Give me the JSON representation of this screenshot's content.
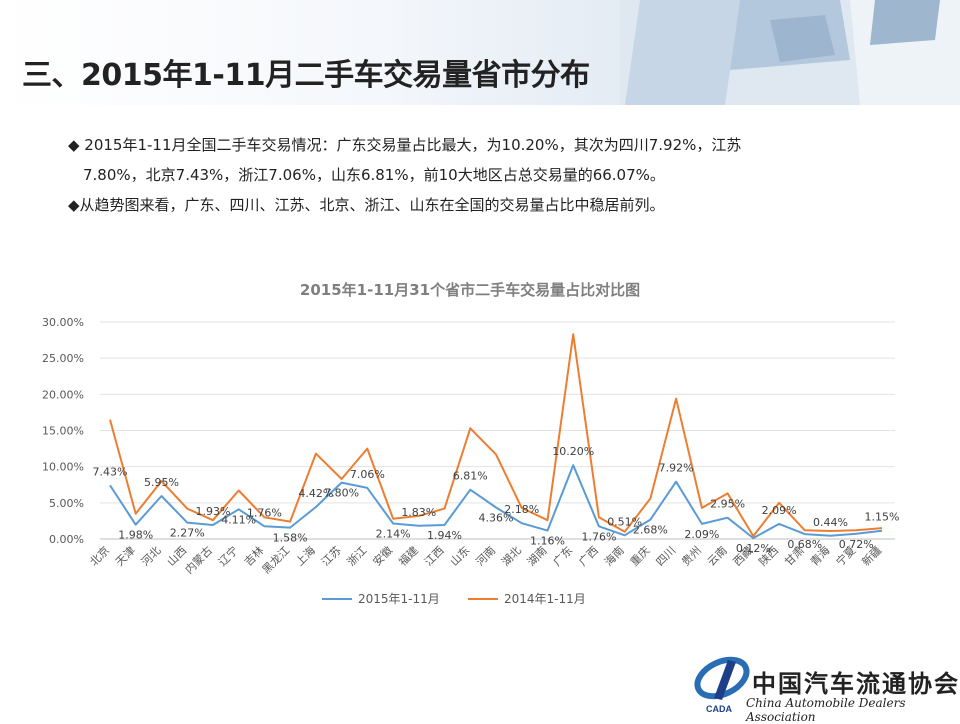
{
  "slide": {
    "title": "三、2015年1-11月二手车交易量省市分布",
    "bullets": [
      "◆ 2015年1-11月全国二手车交易情况：广东交易量占比最大，为10.20%，其次为四川7.92%，江苏",
      "7.80%，北京7.43%，浙江7.06%，山东6.81%，前10大地区占总交易量的66.07%。",
      "◆从趋势图来看，广东、四川、江苏、北京、浙江、山东在全国的交易量占比中稳居前列。"
    ],
    "org_name_cn": "中国汽车流通协会",
    "org_name_en": "China Automobile Dealers Association",
    "logo_text": "CADA"
  },
  "chart_data": {
    "type": "line",
    "title": "2015年1-11月31个省市二手车交易量占比对比图",
    "categories": [
      "北京",
      "天津",
      "河北",
      "山西",
      "内蒙古",
      "辽宁",
      "吉林",
      "黑龙江",
      "上海",
      "江苏",
      "浙江",
      "安徽",
      "福建",
      "江西",
      "山东",
      "河南",
      "湖北",
      "湖南",
      "广东",
      "广西",
      "海南",
      "重庆",
      "四川",
      "贵州",
      "云南",
      "西藏",
      "陕西",
      "甘肃",
      "青海",
      "宁夏",
      "新疆"
    ],
    "series": [
      {
        "name": "2015年1-11月",
        "color": "#5b9bd5",
        "values": [
          7.43,
          1.98,
          5.95,
          2.27,
          1.93,
          4.11,
          1.76,
          1.58,
          4.42,
          7.8,
          7.06,
          2.14,
          1.83,
          1.94,
          6.81,
          4.36,
          2.18,
          1.16,
          10.2,
          1.76,
          0.51,
          2.68,
          7.92,
          2.09,
          2.95,
          0.12,
          2.09,
          0.68,
          0.44,
          0.72,
          1.15
        ]
      },
      {
        "name": "2014年1-11月",
        "color": "#ed7d31",
        "values": [
          16.5,
          3.5,
          8.0,
          4.2,
          2.6,
          6.7,
          3.0,
          2.4,
          11.8,
          8.3,
          12.5,
          2.8,
          3.2,
          4.2,
          15.3,
          11.7,
          4.3,
          2.6,
          28.3,
          3.0,
          1.0,
          5.6,
          19.4,
          4.3,
          6.3,
          0.4,
          5.0,
          1.2,
          1.1,
          1.2,
          1.5
        ]
      }
    ],
    "data_labels": [
      "7.43%",
      "1.98%",
      "5.95%",
      "2.27%",
      "1.93%",
      "4.11%",
      "1.76%",
      "1.58%",
      "4.42%",
      "7.80%",
      "7.06%",
      "2.14%",
      "1.83%",
      "1.94%",
      "6.81%",
      "4.36%",
      "2.18%",
      "1.16%",
      "10.20%",
      "1.76%",
      "0.51%",
      "2.68%",
      "7.92%",
      "2.09%",
      "2.95%",
      "0.12%",
      "2.09%",
      "0.68%",
      "0.44%",
      "0.72%",
      "1.15%"
    ],
    "y_ticks": [
      "0.00%",
      "5.00%",
      "10.00%",
      "15.00%",
      "20.00%",
      "25.00%",
      "30.00%"
    ],
    "ylim": [
      0,
      30
    ],
    "grid": true,
    "legend_position": "bottom"
  }
}
